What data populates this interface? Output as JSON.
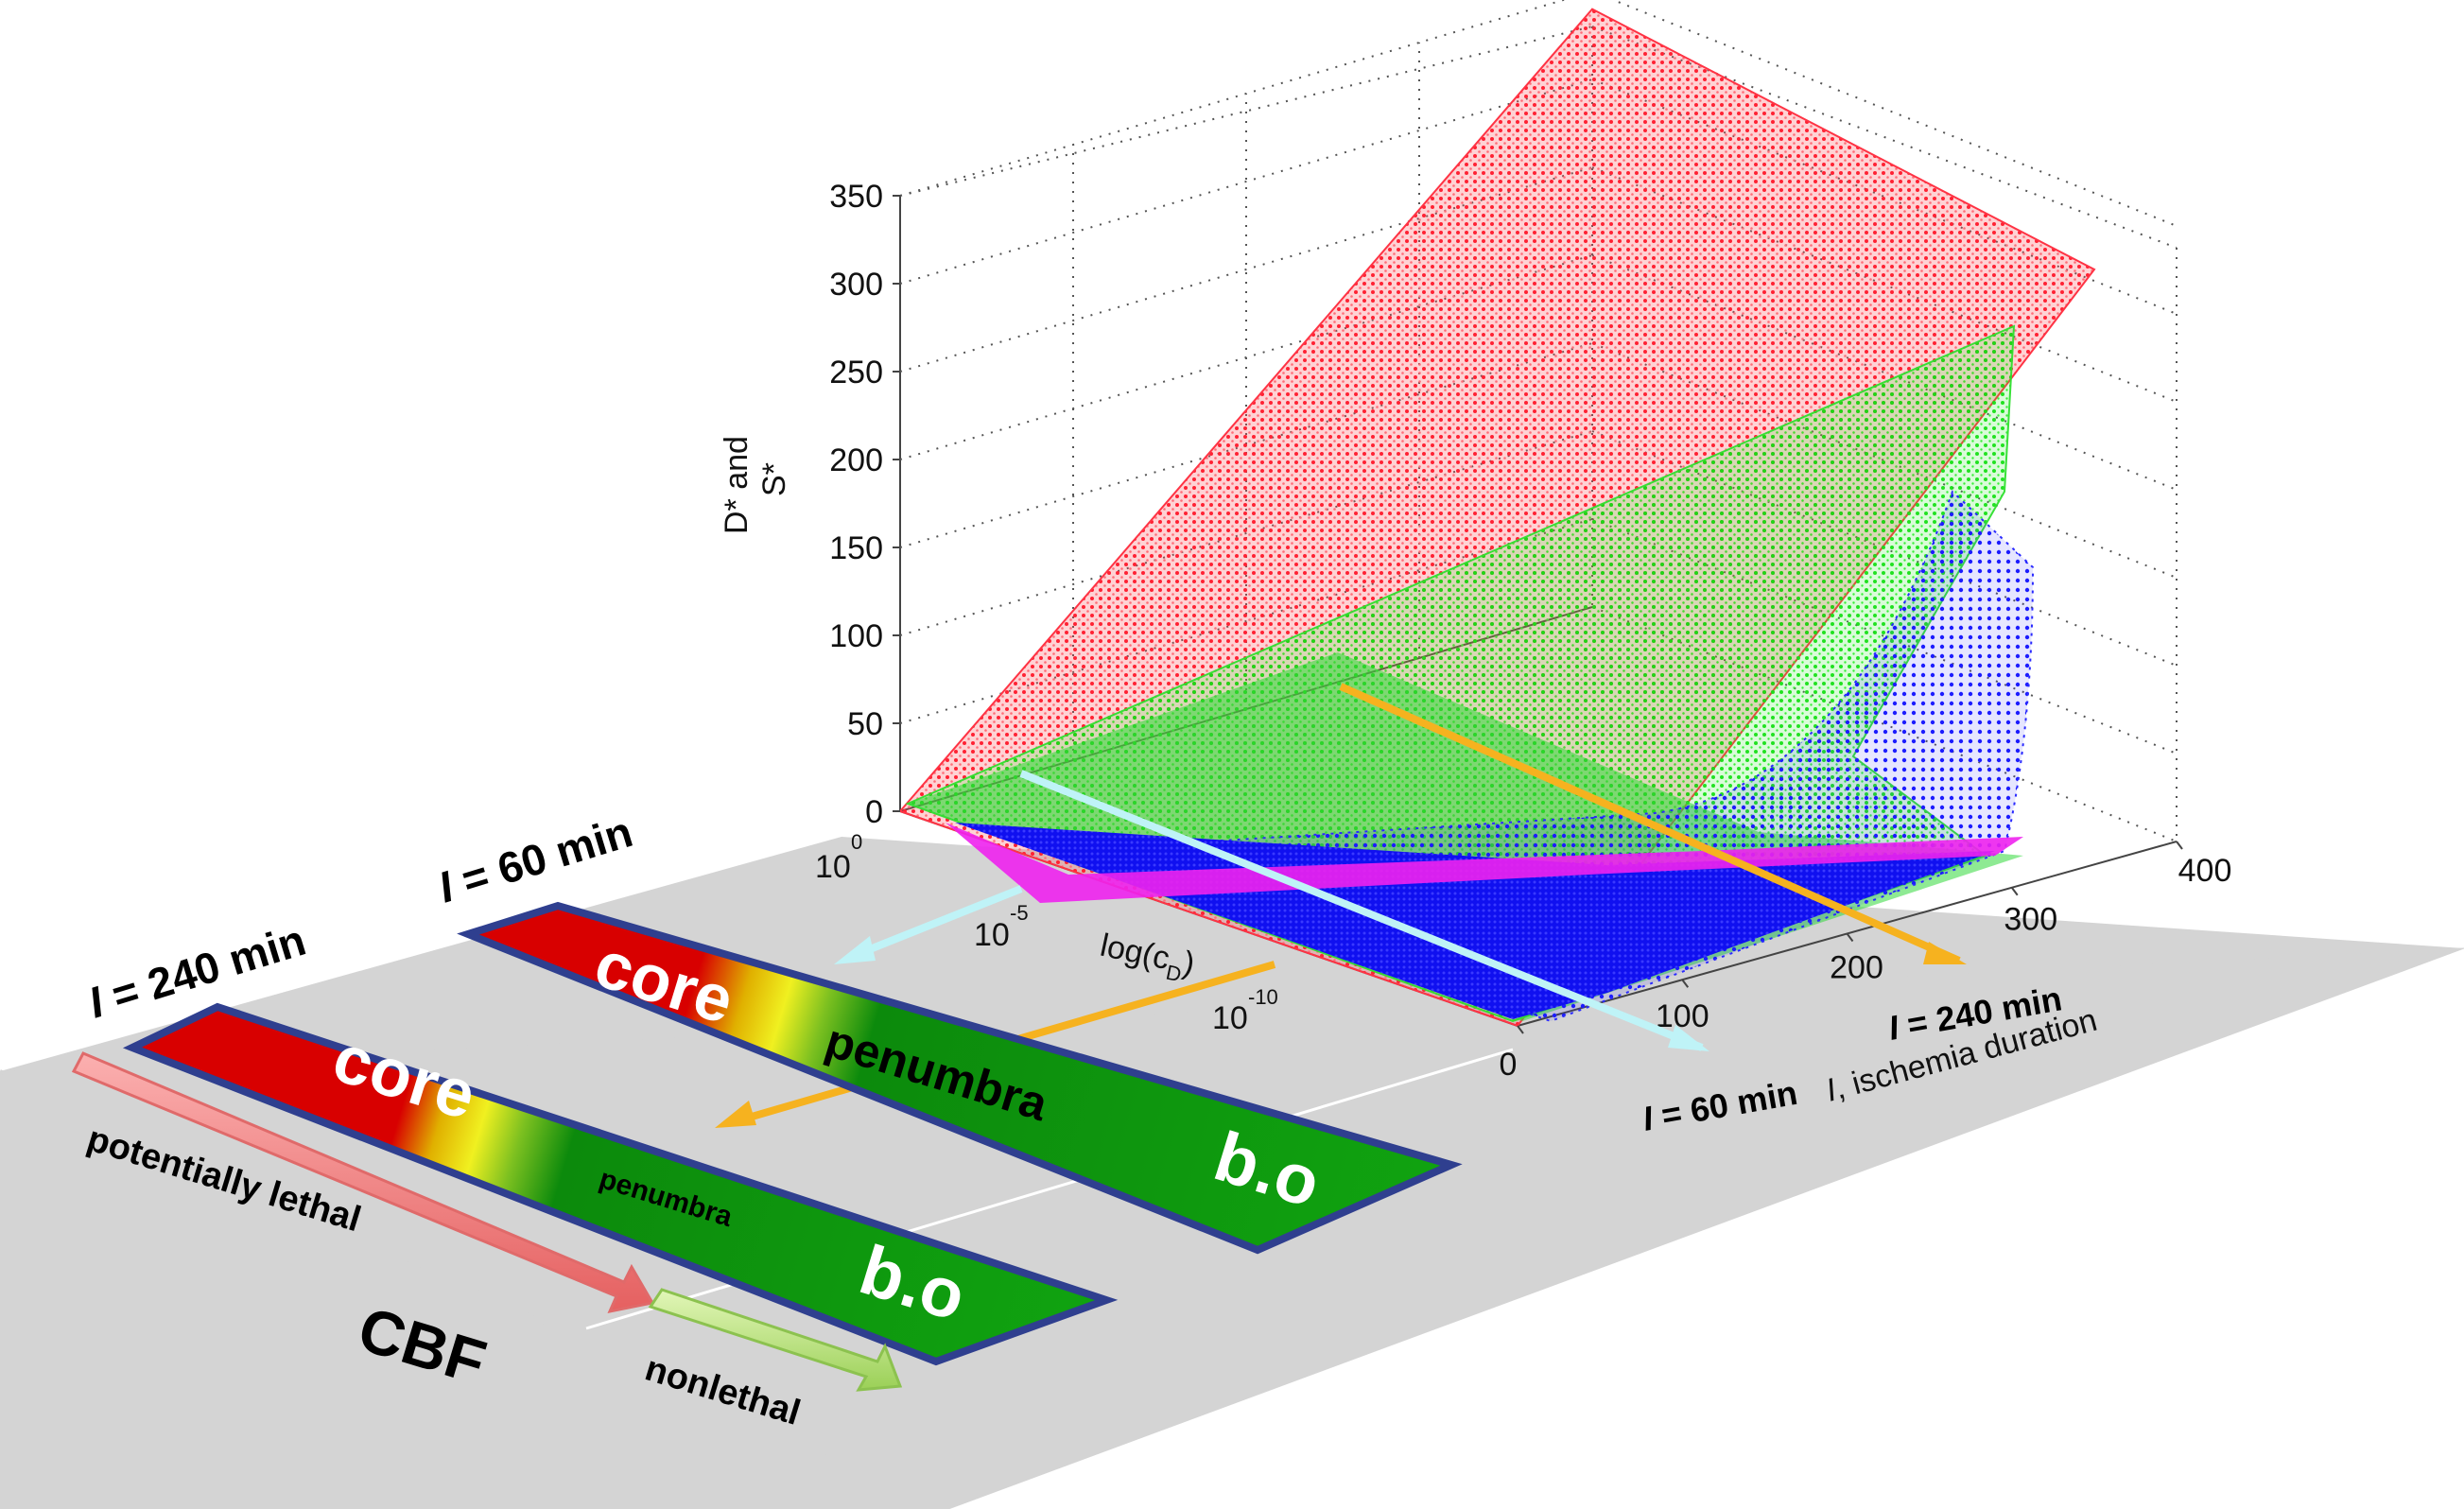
{
  "chart_data": {
    "type": "surface3d",
    "title": "",
    "zlabel_line1": "D* and",
    "zlabel_line2": "S*",
    "z_ticks": [
      "0",
      "50",
      "100",
      "150",
      "200",
      "250",
      "300",
      "350"
    ],
    "zlim": [
      0,
      350
    ],
    "y_label": "log(c",
    "y_label_sub": "D",
    "y_label_end": ")",
    "y_ticks": [
      {
        "base": "10",
        "exp": "0"
      },
      {
        "base": "10",
        "exp": "-5"
      },
      {
        "base": "10",
        "exp": "-10"
      }
    ],
    "x_ticks": [
      "0",
      "100",
      "200",
      "300",
      "400"
    ],
    "xlim": [
      0,
      400
    ],
    "x_label_italic": "I",
    "x_label_rest": ", ischemia duration",
    "series": [
      {
        "name": "red surface",
        "color": "#ff3344",
        "z_at_I0": 0,
        "z_at_I400": 340
      },
      {
        "name": "green surface",
        "color": "#22ee22",
        "z_at_I0": 0,
        "z_at_I400": 275
      },
      {
        "name": "blue surface",
        "color": "#2222ff",
        "z_at_I0": 0,
        "z_at_I400": 200
      },
      {
        "name": "magenta floor",
        "color": "#ee22ee",
        "z_at_I0": 0,
        "z_at_I400": 0
      }
    ],
    "markers": [
      {
        "italic": "I",
        "text": " = 60 min",
        "I": 60,
        "color": "#bff3f7"
      },
      {
        "italic": "I",
        "text": " = 240 min",
        "I": 240,
        "color": "#f6b21f"
      }
    ]
  },
  "bands": {
    "top": {
      "title_italic": "I",
      "title_rest": " = 60 min",
      "core": "core",
      "penumbra": "penumbra",
      "bo": "b.o"
    },
    "bottom": {
      "title_italic": "I",
      "title_rest": " = 240 min",
      "core": "core",
      "penumbra": "penumbra",
      "bo": "b.o"
    }
  },
  "cbf": {
    "label": "CBF",
    "lethal": "potentially lethal",
    "nonlethal": "nonlethal"
  },
  "colors": {
    "floor": "#d4d4d4",
    "core": "#dd0000",
    "penumbra": "#10a010",
    "band_border": "#2f3f8f",
    "lethal_arrow": "#f27f7f",
    "nonlethal_arrow": "#b7e27a"
  }
}
